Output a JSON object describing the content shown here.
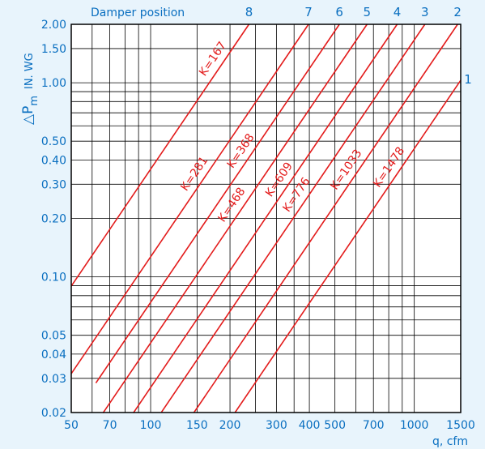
{
  "chart_data": {
    "type": "line",
    "title": "",
    "x_scale": "log",
    "y_scale": "log",
    "xlim": [
      50,
      1500
    ],
    "ylim": [
      0.02,
      2.0
    ],
    "xlabel": "q, cfm",
    "ylabel_symbol": "△P",
    "ylabel_subscript": "m",
    "ylabel_unit": "IN. WG",
    "x_ticks": [
      {
        "value": 50,
        "label": "50"
      },
      {
        "value": 70,
        "label": "70"
      },
      {
        "value": 100,
        "label": "100"
      },
      {
        "value": 150,
        "label": "150"
      },
      {
        "value": 200,
        "label": "200"
      },
      {
        "value": 300,
        "label": "300"
      },
      {
        "value": 400,
        "label": "400"
      },
      {
        "value": 500,
        "label": "500"
      },
      {
        "value": 700,
        "label": "700"
      },
      {
        "value": 1000,
        "label": "1000"
      },
      {
        "value": 1500,
        "label": "1500"
      }
    ],
    "y_ticks": [
      {
        "value": 2.0,
        "label": "2.00"
      },
      {
        "value": 1.5,
        "label": "1.50"
      },
      {
        "value": 1.0,
        "label": "1.00"
      },
      {
        "value": 0.5,
        "label": "0.50"
      },
      {
        "value": 0.4,
        "label": "0.40"
      },
      {
        "value": 0.3,
        "label": "0.30"
      },
      {
        "value": 0.2,
        "label": "0.20"
      },
      {
        "value": 0.1,
        "label": "0.10"
      },
      {
        "value": 0.05,
        "label": "0.05"
      },
      {
        "value": 0.04,
        "label": "0.04"
      },
      {
        "value": 0.03,
        "label": "0.03"
      },
      {
        "value": 0.02,
        "label": "0.02"
      }
    ],
    "x_gridlines": [
      50,
      60,
      70,
      80,
      90,
      100,
      150,
      200,
      250,
      300,
      350,
      400,
      500,
      600,
      700,
      800,
      900,
      1000,
      1500
    ],
    "y_gridlines": [
      0.02,
      0.03,
      0.04,
      0.05,
      0.06,
      0.07,
      0.08,
      0.09,
      0.1,
      0.2,
      0.3,
      0.4,
      0.5,
      0.6,
      0.7,
      0.8,
      0.9,
      1.0,
      1.5,
      2.0
    ],
    "damper_position_label": "Damper position",
    "series": [
      {
        "name": "K=167",
        "damper_position": "8",
        "points": [
          [
            50,
            0.0896
          ],
          [
            236,
            2.0
          ]
        ]
      },
      {
        "name": "K=281",
        "damper_position": "7",
        "points": [
          [
            50,
            0.0317
          ],
          [
            397,
            2.0
          ]
        ]
      },
      {
        "name": "K=368",
        "damper_position": "6",
        "points": [
          [
            62,
            0.0284
          ],
          [
            520,
            2.0
          ]
        ]
      },
      {
        "name": "K=468",
        "damper_position": "5",
        "points": [
          [
            66,
            0.0199
          ],
          [
            662,
            2.0
          ]
        ]
      },
      {
        "name": "K=609",
        "damper_position": "4",
        "points": [
          [
            86,
            0.0199
          ],
          [
            861,
            2.0
          ]
        ]
      },
      {
        "name": "K=776",
        "damper_position": "3",
        "points": [
          [
            110,
            0.0201
          ],
          [
            1097,
            2.0
          ]
        ]
      },
      {
        "name": "K=1033",
        "damper_position": "2",
        "points": [
          [
            146,
            0.02
          ],
          [
            1460,
            2.0
          ]
        ]
      },
      {
        "name": "K=1478",
        "damper_position": "1",
        "points": [
          [
            209,
            0.02
          ],
          [
            1500,
            1.03
          ]
        ]
      }
    ],
    "colors": {
      "curve": "#e31b1b",
      "grid": "#000000",
      "text": "#0a6fc0",
      "background": "#e8f4fc",
      "plot_background": "#ffffff"
    }
  }
}
